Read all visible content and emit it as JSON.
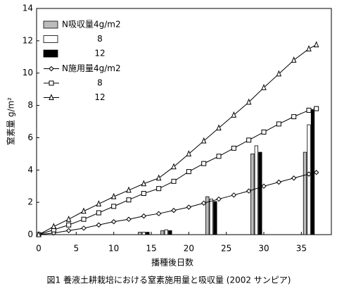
{
  "chart_data": {
    "type": "combo",
    "caption": "図1 養液土耕栽培における窒素施用量と吸収量 (2002 サンピア)",
    "x_label": "播種後日数",
    "y_label": "窒素量 g/m²",
    "xlim": [
      0,
      39
    ],
    "xticks": [
      0,
      5,
      10,
      15,
      20,
      25,
      30,
      35
    ],
    "ylim": [
      0,
      14
    ],
    "yticks": [
      0,
      2,
      4,
      6,
      8,
      10,
      12,
      14
    ],
    "series": [
      {
        "name": "N吸収量4g/m2",
        "type": "bar",
        "color": "#bbbbbb",
        "x": [
          14,
          17,
          23,
          29,
          36
        ],
        "values": [
          0.15,
          0.25,
          2.35,
          5.0,
          5.1
        ]
      },
      {
        "name": "8",
        "type": "bar",
        "color": "#ffffff",
        "x": [
          14,
          17,
          23,
          29,
          36
        ],
        "values": [
          0.15,
          0.3,
          2.2,
          5.5,
          6.8
        ]
      },
      {
        "name": "12",
        "type": "bar",
        "color": "#000000",
        "x": [
          14,
          17,
          23,
          29,
          36
        ],
        "values": [
          0.15,
          0.25,
          2.05,
          5.1,
          7.7
        ]
      },
      {
        "name": "N施用量4g/m2",
        "type": "line",
        "marker": "diamond",
        "color": "#000000",
        "x": [
          0,
          2,
          4,
          6,
          8,
          10,
          12,
          14,
          16,
          18,
          20,
          22,
          24,
          26,
          28,
          30,
          32,
          34,
          36,
          37
        ],
        "values": [
          0,
          0.1,
          0.25,
          0.4,
          0.6,
          0.8,
          0.95,
          1.15,
          1.3,
          1.5,
          1.7,
          1.95,
          2.2,
          2.45,
          2.7,
          3.0,
          3.25,
          3.5,
          3.75,
          3.85
        ]
      },
      {
        "name": "8",
        "type": "line",
        "marker": "square",
        "color": "#000000",
        "x": [
          0,
          2,
          4,
          6,
          8,
          10,
          12,
          14,
          16,
          18,
          20,
          22,
          24,
          26,
          28,
          30,
          32,
          34,
          36,
          37
        ],
        "values": [
          0,
          0.3,
          0.6,
          0.95,
          1.35,
          1.75,
          2.15,
          2.55,
          2.85,
          3.3,
          3.9,
          4.4,
          4.85,
          5.35,
          5.85,
          6.35,
          6.85,
          7.3,
          7.7,
          7.8
        ]
      },
      {
        "name": "12",
        "type": "line",
        "marker": "triangle",
        "color": "#000000",
        "x": [
          0,
          2,
          4,
          6,
          8,
          10,
          12,
          14,
          16,
          18,
          20,
          22,
          24,
          26,
          28,
          30,
          32,
          34,
          36,
          37
        ],
        "values": [
          0,
          0.5,
          0.95,
          1.45,
          1.9,
          2.35,
          2.75,
          3.15,
          3.5,
          4.2,
          5.0,
          5.8,
          6.6,
          7.4,
          8.2,
          9.1,
          9.95,
          10.8,
          11.5,
          11.75
        ]
      }
    ]
  }
}
